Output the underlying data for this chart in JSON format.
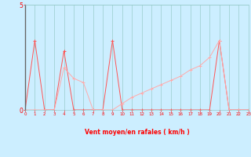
{
  "x": [
    0,
    1,
    2,
    3,
    4,
    5,
    6,
    7,
    8,
    9,
    10,
    11,
    12,
    13,
    14,
    15,
    16,
    17,
    18,
    19,
    20,
    21,
    22,
    23
  ],
  "line1_y": [
    0,
    3.3,
    0,
    0,
    2.8,
    0,
    0,
    0,
    0,
    3.3,
    0,
    0,
    0,
    0,
    0,
    0,
    0,
    0,
    0,
    0,
    3.3,
    0,
    0,
    0
  ],
  "line2_y": [
    0,
    0,
    0,
    0,
    2.0,
    1.5,
    1.3,
    0,
    0,
    0,
    0.3,
    0.6,
    0.8,
    1.0,
    1.2,
    1.4,
    1.6,
    1.9,
    2.1,
    2.5,
    3.3,
    0,
    0,
    0
  ],
  "xlabel": "Vent moyen/en rafales ( km/h )",
  "ylim": [
    0,
    5
  ],
  "xlim": [
    0,
    23
  ],
  "yticks": [
    0,
    5
  ],
  "xticks": [
    0,
    1,
    2,
    3,
    4,
    5,
    6,
    7,
    8,
    9,
    10,
    11,
    12,
    13,
    14,
    15,
    16,
    17,
    18,
    19,
    20,
    21,
    22,
    23
  ],
  "bg_color": "#cceeff",
  "line_color1": "#ff5555",
  "line_color2": "#ffaaaa",
  "grid_color": "#99cccc",
  "arrow_color": "#ff5555",
  "xlabel_color": "#ff0000",
  "tick_color": "#ff0000",
  "spine_left_color": "#666666"
}
